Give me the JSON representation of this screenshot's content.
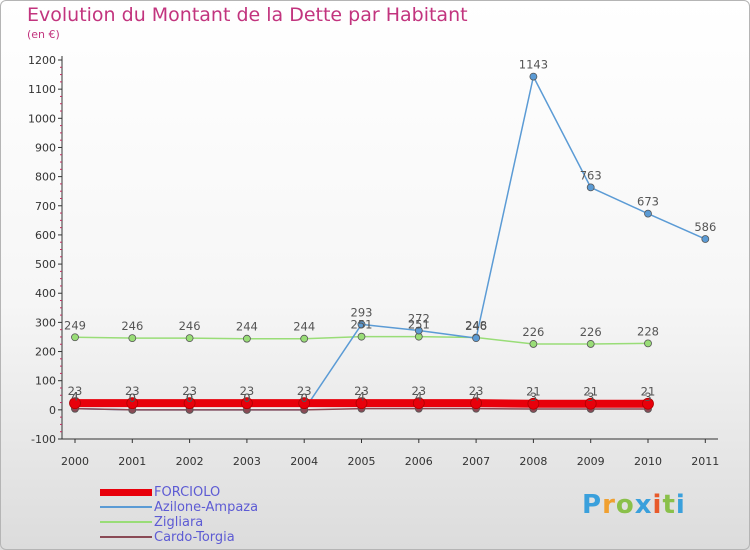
{
  "header": {
    "title": "Evolution du Montant de la Dette par Habitant",
    "subtitle": "(en €)"
  },
  "logo": {
    "text": "Proxiti",
    "colors": [
      "#3aa0dc",
      "#f0a030",
      "#8ac04a",
      "#3aa0dc",
      "#e85a2a",
      "#8ac04a",
      "#3aa0dc"
    ]
  },
  "chart_data": {
    "type": "line",
    "title": "Evolution du Montant de la Dette par Habitant",
    "subtitle": "(en €)",
    "x": [
      2000,
      2001,
      2002,
      2003,
      2004,
      2005,
      2006,
      2007,
      2008,
      2009,
      2010,
      2011
    ],
    "ylim": [
      -100,
      1200
    ],
    "yticks": [
      -100,
      0,
      100,
      200,
      300,
      400,
      500,
      600,
      700,
      800,
      900,
      1000,
      1100,
      1200
    ],
    "grid": false,
    "legend_position": "bottom-left",
    "series": [
      {
        "name": "FORCIOLO",
        "color": "#e8000b",
        "values": [
          23,
          23,
          23,
          23,
          23,
          23,
          23,
          23,
          21,
          21,
          21,
          null
        ],
        "labels": [
          "23",
          "23",
          "23",
          "23",
          "23",
          "23",
          "23",
          "23",
          "21",
          "21",
          "21",
          ""
        ]
      },
      {
        "name": "Azilone-Ampaza",
        "color": "#5b9bd5",
        "values": [
          4,
          0,
          0,
          0,
          0,
          293,
          272,
          246,
          1143,
          763,
          673,
          586
        ],
        "labels": [
          "4",
          "0",
          "0",
          "0",
          "0",
          "293",
          "272",
          "246",
          "1143",
          "763",
          "673",
          "586"
        ]
      },
      {
        "name": "Zigliara",
        "color": "#99dd77",
        "values": [
          249,
          246,
          246,
          244,
          244,
          251,
          251,
          248,
          226,
          226,
          228,
          null
        ],
        "labels": [
          "249",
          "246",
          "246",
          "244",
          "244",
          "251",
          "251",
          "248",
          "226",
          "226",
          "228",
          ""
        ]
      },
      {
        "name": "Cardo-Torgia",
        "color": "#8a4a55",
        "values": [
          4,
          0,
          0,
          0,
          0,
          4,
          4,
          4,
          3,
          3,
          3,
          null
        ],
        "labels": [
          "4",
          "0",
          "0",
          "0",
          "0",
          "4",
          "4",
          "4",
          "3",
          "3",
          "3",
          ""
        ]
      }
    ]
  }
}
